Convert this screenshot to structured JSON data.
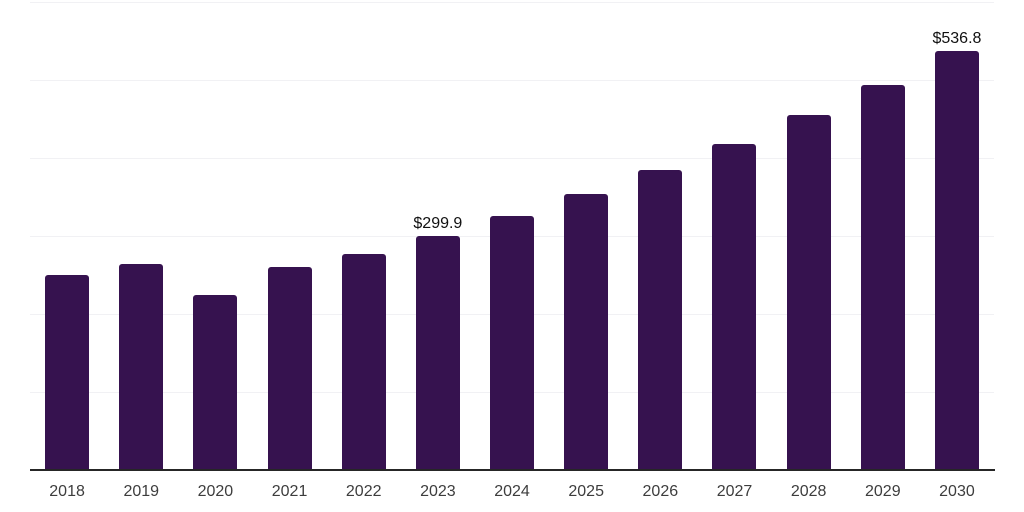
{
  "chart_data": {
    "type": "bar",
    "title": "",
    "xlabel": "",
    "ylabel": "",
    "categories": [
      "2018",
      "2019",
      "2020",
      "2021",
      "2022",
      "2023",
      "2024",
      "2025",
      "2026",
      "2027",
      "2028",
      "2029",
      "2030"
    ],
    "values": [
      250.6,
      264.7,
      225.0,
      259.7,
      277.6,
      299.9,
      325.9,
      354.2,
      384.9,
      418.3,
      454.6,
      494.0,
      536.8
    ],
    "data_labels": [
      "",
      "",
      "",
      "",
      "",
      "$299.9",
      "",
      "",
      "",
      "",
      "",
      "",
      "$536.8"
    ],
    "ylim": [
      0,
      600
    ],
    "gridline_step": 100,
    "grid": true,
    "legend": "none",
    "y_axis_tick_labels_visible": false,
    "bar_color": "#36124F",
    "axis_line_color": "#262626",
    "gridline_color": "#f1f1f4",
    "tick_label_color": "#3d3d3d",
    "data_label_color": "#111111"
  }
}
